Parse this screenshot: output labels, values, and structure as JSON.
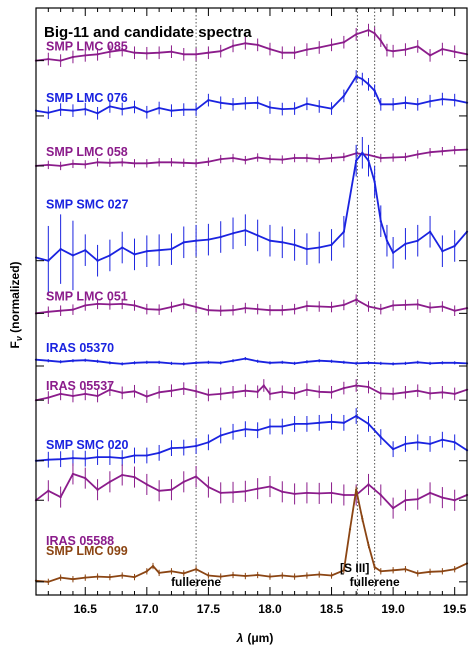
{
  "chart_data": {
    "type": "line",
    "title": "Big-11 and candidate spectra",
    "xlabel": "λ (μm)",
    "xlabel_parts": {
      "symbol": "λ",
      "units": "(μm)"
    },
    "ylabel": "Fν (normalized)",
    "ylabel_parts": {
      "base": "F",
      "sub": "ν",
      "rest": " (normalized)"
    },
    "xlim": [
      16.1,
      19.6
    ],
    "x_ticks": [
      16.5,
      17.0,
      17.5,
      18.0,
      18.5,
      19.0,
      19.5
    ],
    "x_tick_labels": [
      "16.5",
      "17.0",
      "17.5",
      "18.0",
      "18.5",
      "19.0",
      "19.5"
    ],
    "ylim": [
      -0.25,
      10.9
    ],
    "grid": false,
    "legend": "none",
    "annotations": [
      {
        "text": "fullerene",
        "x": 17.4
      },
      {
        "text": "[S III]",
        "x": 18.71
      },
      {
        "text": "fullerene",
        "x": 18.85
      }
    ],
    "vlines": [
      17.4,
      18.71,
      18.85
    ],
    "series": [
      {
        "name": "SMP LMC 085",
        "color": "#8b1c8b",
        "offset": 9.9,
        "x": [
          16.1,
          16.2,
          16.3,
          16.4,
          16.5,
          16.6,
          16.7,
          16.8,
          16.9,
          17.0,
          17.1,
          17.2,
          17.3,
          17.4,
          17.5,
          17.6,
          17.7,
          17.8,
          17.9,
          18.0,
          18.1,
          18.2,
          18.3,
          18.4,
          18.5,
          18.6,
          18.7,
          18.8,
          18.85,
          18.9,
          18.95,
          19.0,
          19.1,
          19.2,
          19.3,
          19.4,
          19.5,
          19.6
        ],
        "y": [
          0.0,
          0.03,
          0.0,
          0.07,
          0.1,
          0.12,
          0.17,
          0.2,
          0.15,
          0.14,
          0.15,
          0.17,
          0.12,
          0.12,
          0.15,
          0.18,
          0.28,
          0.33,
          0.3,
          0.22,
          0.15,
          0.15,
          0.21,
          0.25,
          0.3,
          0.35,
          0.5,
          0.58,
          0.52,
          0.38,
          0.2,
          0.18,
          0.21,
          0.27,
          0.1,
          0.22,
          0.17,
          0.12
        ],
        "err": 0.12
      },
      {
        "name": "SMP LMC 076",
        "color": "#1a23e0",
        "offset": 8.85,
        "x": [
          16.1,
          16.2,
          16.3,
          16.4,
          16.5,
          16.6,
          16.7,
          16.8,
          16.9,
          17.0,
          17.1,
          17.2,
          17.3,
          17.4,
          17.5,
          17.6,
          17.7,
          17.8,
          17.9,
          18.0,
          18.1,
          18.2,
          18.3,
          18.4,
          18.5,
          18.6,
          18.7,
          18.75,
          18.8,
          18.85,
          18.9,
          19.0,
          19.1,
          19.2,
          19.3,
          19.4,
          19.5,
          19.6
        ],
        "y": [
          0.1,
          0.06,
          0.12,
          0.1,
          0.13,
          0.05,
          0.18,
          0.13,
          0.17,
          0.07,
          0.15,
          0.1,
          0.12,
          0.12,
          0.3,
          0.25,
          0.22,
          0.24,
          0.25,
          0.16,
          0.13,
          0.14,
          0.23,
          0.18,
          0.14,
          0.38,
          0.75,
          0.7,
          0.6,
          0.48,
          0.22,
          0.22,
          0.25,
          0.22,
          0.28,
          0.32,
          0.3,
          0.25
        ],
        "err": 0.12
      },
      {
        "name": "SMP LMC 058",
        "color": "#8b1c8b",
        "offset": 7.9,
        "x": [
          16.1,
          16.2,
          16.3,
          16.4,
          16.5,
          16.6,
          16.7,
          16.8,
          16.9,
          17.0,
          17.1,
          17.2,
          17.3,
          17.4,
          17.5,
          17.6,
          17.7,
          17.8,
          17.9,
          18.0,
          18.1,
          18.2,
          18.3,
          18.4,
          18.5,
          18.6,
          18.7,
          18.8,
          18.9,
          19.0,
          19.1,
          19.2,
          19.3,
          19.4,
          19.5,
          19.6
        ],
        "y": [
          0.0,
          0.02,
          0.0,
          0.04,
          0.03,
          0.07,
          0.06,
          0.07,
          0.05,
          0.05,
          0.07,
          0.07,
          0.06,
          0.05,
          0.08,
          0.13,
          0.15,
          0.11,
          0.16,
          0.13,
          0.12,
          0.15,
          0.15,
          0.13,
          0.15,
          0.17,
          0.24,
          0.21,
          0.15,
          0.16,
          0.17,
          0.22,
          0.26,
          0.28,
          0.3,
          0.31
        ],
        "err": 0.08
      },
      {
        "name": "SMP SMC 027",
        "color": "#1a23e0",
        "offset": 6.1,
        "x": [
          16.1,
          16.2,
          16.3,
          16.4,
          16.5,
          16.6,
          16.7,
          16.8,
          16.9,
          17.0,
          17.1,
          17.2,
          17.3,
          17.4,
          17.5,
          17.6,
          17.7,
          17.8,
          17.9,
          18.0,
          18.1,
          18.2,
          18.3,
          18.4,
          18.5,
          18.6,
          18.7,
          18.75,
          18.8,
          18.85,
          18.9,
          18.95,
          19.0,
          19.1,
          19.2,
          19.3,
          19.4,
          19.5,
          19.6
        ],
        "y": [
          0.06,
          0.0,
          0.22,
          0.1,
          0.2,
          0.0,
          0.1,
          0.25,
          0.12,
          0.18,
          0.2,
          0.22,
          0.35,
          0.38,
          0.4,
          0.45,
          0.52,
          0.58,
          0.48,
          0.38,
          0.35,
          0.3,
          0.22,
          0.25,
          0.3,
          0.55,
          1.9,
          2.05,
          1.9,
          1.5,
          0.75,
          0.38,
          0.15,
          0.32,
          0.38,
          0.55,
          0.18,
          0.28,
          0.55
        ],
        "err": 0.3
      },
      {
        "name": "SMP LMC 051",
        "color": "#8b1c8b",
        "offset": 5.1,
        "x": [
          16.1,
          16.2,
          16.3,
          16.4,
          16.5,
          16.6,
          16.7,
          16.8,
          16.9,
          17.0,
          17.1,
          17.2,
          17.3,
          17.4,
          17.5,
          17.6,
          17.7,
          17.8,
          17.9,
          18.0,
          18.1,
          18.2,
          18.3,
          18.4,
          18.5,
          18.6,
          18.7,
          18.8,
          18.9,
          19.0,
          19.1,
          19.2,
          19.3,
          19.4,
          19.5,
          19.6
        ],
        "y": [
          0.0,
          0.03,
          0.05,
          0.07,
          0.15,
          0.18,
          0.17,
          0.18,
          0.15,
          0.08,
          0.07,
          0.12,
          0.18,
          0.12,
          0.06,
          0.05,
          0.06,
          0.1,
          0.08,
          0.06,
          0.06,
          0.08,
          0.14,
          0.13,
          0.12,
          0.16,
          0.26,
          0.13,
          0.08,
          0.15,
          0.16,
          0.17,
          0.11,
          0.13,
          0.05,
          0.1
        ],
        "err": 0.1
      },
      {
        "name": "IRAS 05370",
        "color": "#1a23e0",
        "offset": 4.1,
        "x": [
          16.1,
          16.2,
          16.3,
          16.4,
          16.5,
          16.6,
          16.7,
          16.8,
          16.9,
          17.0,
          17.1,
          17.2,
          17.3,
          17.4,
          17.5,
          17.6,
          17.7,
          17.8,
          17.9,
          18.0,
          18.1,
          18.2,
          18.3,
          18.4,
          18.5,
          18.6,
          18.7,
          18.8,
          18.9,
          19.0,
          19.1,
          19.2,
          19.3,
          19.4,
          19.5,
          19.6
        ],
        "y": [
          0.12,
          0.1,
          0.08,
          0.1,
          0.11,
          0.09,
          0.06,
          0.04,
          0.06,
          0.07,
          0.07,
          0.05,
          0.04,
          0.06,
          0.07,
          0.06,
          0.1,
          0.14,
          0.09,
          0.06,
          0.07,
          0.05,
          0.08,
          0.1,
          0.09,
          0.07,
          0.05,
          0.06,
          0.05,
          0.04,
          0.05,
          0.07,
          0.05,
          0.06,
          0.06,
          0.05
        ],
        "err": 0.03
      },
      {
        "name": "IRAS 05537",
        "color": "#8b1c8b",
        "offset": 3.45,
        "x": [
          16.1,
          16.2,
          16.3,
          16.4,
          16.5,
          16.6,
          16.7,
          16.8,
          16.9,
          17.0,
          17.1,
          17.2,
          17.3,
          17.4,
          17.5,
          17.6,
          17.7,
          17.8,
          17.9,
          17.95,
          18.0,
          18.1,
          18.2,
          18.3,
          18.4,
          18.5,
          18.6,
          18.7,
          18.8,
          18.9,
          19.0,
          19.1,
          19.2,
          19.3,
          19.4,
          19.5,
          19.6
        ],
        "y": [
          0.0,
          0.05,
          0.12,
          0.08,
          0.12,
          0.08,
          0.2,
          0.14,
          0.17,
          0.07,
          0.15,
          0.18,
          0.22,
          0.17,
          0.1,
          0.12,
          0.15,
          0.18,
          0.16,
          0.28,
          0.12,
          0.16,
          0.13,
          0.2,
          0.16,
          0.15,
          0.23,
          0.28,
          0.25,
          0.13,
          0.12,
          0.15,
          0.18,
          0.13,
          0.15,
          0.12,
          0.2
        ],
        "err": 0.12
      },
      {
        "name": "SMP SMC 020",
        "color": "#1a23e0",
        "offset": 2.3,
        "x": [
          16.1,
          16.2,
          16.3,
          16.4,
          16.5,
          16.6,
          16.7,
          16.8,
          16.9,
          17.0,
          17.1,
          17.2,
          17.3,
          17.4,
          17.5,
          17.6,
          17.7,
          17.8,
          17.9,
          18.0,
          18.1,
          18.2,
          18.3,
          18.4,
          18.5,
          18.6,
          18.7,
          18.8,
          18.9,
          19.0,
          19.1,
          19.2,
          19.3,
          19.4,
          19.5,
          19.6
        ],
        "y": [
          0.0,
          0.02,
          0.03,
          0.05,
          0.04,
          0.07,
          0.07,
          0.05,
          0.1,
          0.1,
          0.15,
          0.24,
          0.25,
          0.28,
          0.35,
          0.48,
          0.55,
          0.6,
          0.58,
          0.65,
          0.65,
          0.7,
          0.7,
          0.72,
          0.74,
          0.72,
          0.85,
          0.7,
          0.45,
          0.22,
          0.32,
          0.35,
          0.32,
          0.4,
          0.35,
          0.2
        ],
        "err": 0.15
      },
      {
        "name": "IRAS 05588",
        "color": "#8b1c8b",
        "offset": 1.55,
        "x": [
          16.1,
          16.2,
          16.3,
          16.4,
          16.5,
          16.6,
          16.7,
          16.8,
          16.9,
          17.0,
          17.1,
          17.2,
          17.3,
          17.4,
          17.5,
          17.6,
          17.7,
          17.8,
          17.9,
          18.0,
          18.1,
          18.2,
          18.3,
          18.4,
          18.5,
          18.6,
          18.7,
          18.8,
          18.9,
          19.0,
          19.1,
          19.2,
          19.3,
          19.4,
          19.5,
          19.6
        ],
        "y": [
          0.0,
          0.18,
          0.06,
          0.5,
          0.42,
          0.2,
          0.35,
          0.48,
          0.44,
          0.3,
          0.18,
          0.2,
          0.35,
          0.45,
          0.25,
          0.14,
          0.15,
          0.17,
          0.22,
          0.26,
          0.16,
          0.12,
          0.14,
          0.13,
          0.14,
          0.1,
          0.1,
          0.3,
          0.1,
          -0.15,
          0.0,
          0.02,
          0.14,
          0.05,
          0.0,
          0.1
        ],
        "err": 0.2
      },
      {
        "name": "SMP LMC 099",
        "color": "#8b4513",
        "offset": 0.0,
        "x": [
          16.1,
          16.2,
          16.3,
          16.4,
          16.5,
          16.6,
          16.7,
          16.8,
          16.9,
          17.0,
          17.05,
          17.1,
          17.2,
          17.3,
          17.4,
          17.5,
          17.6,
          17.7,
          17.8,
          17.9,
          18.0,
          18.1,
          18.2,
          18.3,
          18.4,
          18.5,
          18.6,
          18.65,
          18.7,
          18.75,
          18.8,
          18.85,
          18.9,
          19.0,
          19.1,
          19.2,
          19.3,
          19.4,
          19.5,
          19.6
        ],
        "y": [
          0.02,
          0.0,
          0.08,
          0.05,
          0.08,
          0.1,
          0.09,
          0.12,
          0.09,
          0.2,
          0.3,
          0.17,
          0.2,
          0.16,
          0.24,
          0.12,
          0.1,
          0.13,
          0.11,
          0.13,
          0.1,
          0.12,
          0.1,
          0.12,
          0.14,
          0.12,
          0.22,
          1.0,
          1.75,
          1.2,
          0.7,
          0.28,
          0.2,
          0.22,
          0.24,
          0.16,
          0.19,
          0.2,
          0.24,
          0.35
        ],
        "err": 0.06
      }
    ]
  }
}
